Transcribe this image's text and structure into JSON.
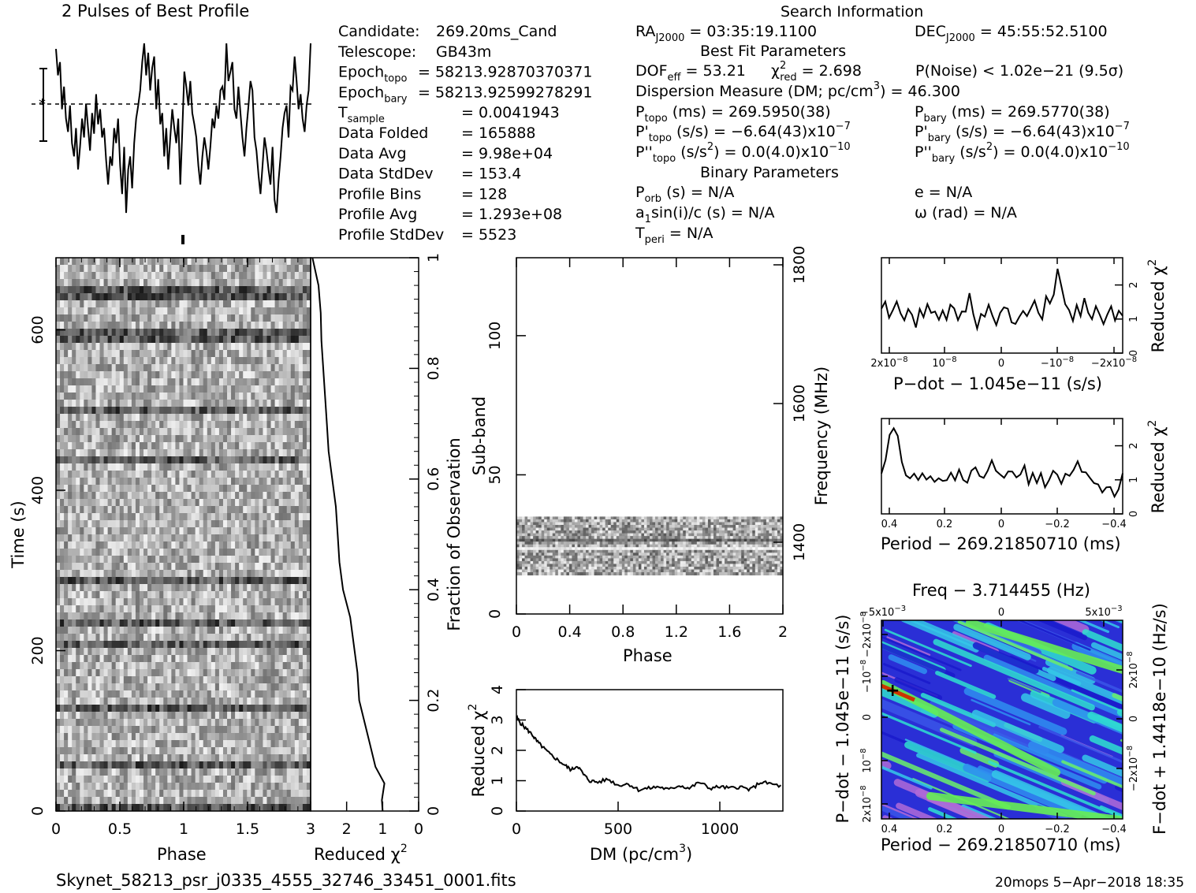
{
  "header": {
    "profile_title": "2 Pulses of Best Profile",
    "search_title": "Search Information",
    "best_fit_title": "Best Fit Parameters",
    "binary_title": "Binary Parameters"
  },
  "candidate_info": [
    {
      "label": "Candidate:",
      "value": "269.20ms_Cand"
    },
    {
      "label": "Telescope:",
      "value": "GB43m"
    },
    {
      "label": "Epoch",
      "sub": "topo",
      "value": "= 58213.92870370371"
    },
    {
      "label": "Epoch",
      "sub": "bary",
      "value": "= 58213.92599278291"
    },
    {
      "label": "T",
      "sub": "sample",
      "value": "=   0.0041943"
    },
    {
      "label": "Data Folded",
      "value": "=   165888"
    },
    {
      "label": "Data Avg",
      "value": "=   9.98e+04"
    },
    {
      "label": "Data StdDev",
      "value": "=   153.4"
    },
    {
      "label": "Profile Bins",
      "value": "=   128"
    },
    {
      "label": "Profile Avg",
      "value": "=   1.293e+08"
    },
    {
      "label": "Profile StdDev",
      "value": "=   5523"
    }
  ],
  "search_info": {
    "ra": {
      "label": "RA",
      "sub": "J2000",
      "value": " = 03:35:19.1100"
    },
    "dec": {
      "label": "DEC",
      "sub": "J2000",
      "value": " = 45:55:52.5100"
    },
    "dof": {
      "label": "DOF",
      "sub": "eff",
      "value": " = 53.21"
    },
    "chi2": {
      "label": "χ",
      "sup": "2",
      "sub": "red",
      "value": " = 2.698"
    },
    "pnoise": "P(Noise) < 1.02e−21   (9.5σ)",
    "dm": "Dispersion Measure (DM; pc/cm",
    "dm_sup": "3",
    "dm_value": ") = 46.300",
    "p_topo": {
      "label": "P",
      "sub": "topo",
      "value": " (ms) =  269.5950(38)"
    },
    "p_bary": {
      "label": "P",
      "sub": "bary",
      "value": " (ms) =  269.5770(38)"
    },
    "pd_topo": {
      "label": "P'",
      "sub": "topo",
      "value": " (s/s) = −6.64(43)x10",
      "sup": "−7"
    },
    "pd_bary": {
      "label": "P'",
      "sub": "bary",
      "value": " (s/s) = −6.64(43)x10",
      "sup": "−7"
    },
    "pdd_topo": {
      "label": "P''",
      "sub": "topo",
      "value": " (s/s",
      "sup1": "2",
      "value2": ") = 0.0(4.0)x10",
      "sup": "−10"
    },
    "pdd_bary": {
      "label": "P''",
      "sub": "bary",
      "value": " (s/s",
      "sup1": "2",
      "value2": ") = 0.0(4.0)x10",
      "sup": "−10"
    },
    "porb": {
      "label": "P",
      "sub": "orb",
      "value": " (s) = N/A"
    },
    "a1": {
      "label": "a",
      "sub": "1",
      "value": "sin(i)/c (s) = N/A"
    },
    "tperi": {
      "label": "T",
      "sub": "peri",
      "value": " = N/A"
    },
    "ecc": "e = N/A",
    "omega": "ω (rad) = N/A"
  },
  "chart_data": [
    {
      "id": "profile",
      "type": "line",
      "title": "2 Pulses of Best Profile",
      "x_range": [
        0,
        2
      ],
      "values": [
        0.92,
        0.78,
        0.85,
        0.6,
        0.72,
        0.55,
        0.48,
        0.62,
        0.42,
        0.35,
        0.5,
        0.28,
        0.4,
        0.55,
        0.45,
        0.63,
        0.5,
        0.38,
        0.58,
        0.47,
        0.68,
        0.52,
        0.6,
        0.45,
        0.5,
        0.33,
        0.2,
        0.35,
        0.3,
        0.5,
        0.42,
        0.55,
        0.3,
        0.15,
        0.4,
        0.05,
        0.28,
        0.35,
        0.18,
        0.42,
        0.55,
        0.62,
        0.7,
        0.85,
        0.95,
        0.78,
        0.9,
        0.7,
        0.82,
        0.88,
        0.6,
        0.76,
        0.52,
        0.58,
        0.35,
        0.5,
        0.28,
        0.45,
        0.6,
        0.5,
        0.42,
        0.55,
        0.2,
        0.48,
        0.8,
        0.72,
        0.62,
        0.75,
        0.58,
        0.52,
        0.45,
        0.3,
        0.2,
        0.35,
        0.45,
        0.38,
        0.28,
        0.4,
        0.55,
        0.5,
        0.62,
        0.55,
        0.7,
        0.72,
        0.65,
        0.95,
        0.75,
        0.8,
        0.85,
        0.6,
        0.55,
        0.72,
        0.58,
        0.45,
        0.35,
        0.5,
        0.62,
        0.75,
        0.7,
        0.45,
        0.38,
        0.25,
        0.15,
        0.3,
        0.45,
        0.38,
        0.28,
        0.2,
        0.4,
        0.12,
        0.05,
        0.22,
        0.35,
        0.5,
        0.58,
        0.62,
        0.45,
        0.72,
        0.7,
        0.88,
        0.75,
        0.6,
        0.68,
        0.55,
        0.48,
        0.62,
        0.7,
        0.95
      ]
    },
    {
      "id": "time_phase",
      "type": "heatmap",
      "x_axis_label": "Phase",
      "y_axis_label": "Time (s)",
      "x_ticks": [
        "0",
        "0.5",
        "1",
        "1.5"
      ],
      "y_ticks": [
        "0",
        "200",
        "400",
        "600"
      ],
      "y_range": [
        0,
        690
      ],
      "right_axis_label": "Fraction of Observation",
      "right_ticks": [
        "0",
        "0.2",
        "0.4",
        "0.6",
        "0.8",
        "1"
      ]
    },
    {
      "id": "time_chi2",
      "type": "line",
      "x_axis_label": "Reduced χ",
      "x_axis_sup": "2",
      "x_ticks": [
        "3",
        "2",
        "1",
        "0"
      ],
      "x_range": [
        3,
        0
      ],
      "points": [
        [
          1.0,
          0.0
        ],
        [
          1.02,
          0.02
        ],
        [
          0.95,
          0.05
        ],
        [
          1.2,
          0.08
        ],
        [
          1.35,
          0.12
        ],
        [
          1.5,
          0.16
        ],
        [
          1.65,
          0.2
        ],
        [
          1.7,
          0.25
        ],
        [
          1.8,
          0.3
        ],
        [
          1.9,
          0.35
        ],
        [
          2.1,
          0.4
        ],
        [
          2.2,
          0.45
        ],
        [
          2.25,
          0.5
        ],
        [
          2.3,
          0.55
        ],
        [
          2.4,
          0.6
        ],
        [
          2.5,
          0.65
        ],
        [
          2.55,
          0.7
        ],
        [
          2.6,
          0.75
        ],
        [
          2.65,
          0.8
        ],
        [
          2.7,
          0.85
        ],
        [
          2.72,
          0.9
        ],
        [
          2.78,
          0.95
        ],
        [
          2.95,
          1.0
        ]
      ]
    },
    {
      "id": "subband_phase",
      "type": "heatmap",
      "x_axis_label": "Phase",
      "y_axis_label": "Sub-band",
      "x_ticks": [
        "0",
        "0.4",
        "0.8",
        "1.2",
        "1.6",
        "2"
      ],
      "y_ticks": [
        "0",
        "50",
        "100"
      ],
      "y_range": [
        0,
        128
      ],
      "band_range": [
        14,
        35
      ],
      "right_axis_label": "Frequency (MHz)",
      "right_ticks": [
        "1400",
        "1600",
        "1800"
      ]
    },
    {
      "id": "dm_chi2",
      "type": "line",
      "x_axis_label": "DM (pc/cm",
      "x_axis_sup": "3",
      "y_axis_label": "Reduced χ",
      "y_axis_sup": "2",
      "x_ticks": [
        "0",
        "500",
        "1000"
      ],
      "y_ticks": [
        "0",
        "1",
        "2",
        "3",
        "4"
      ],
      "x_range": [
        0,
        1310
      ],
      "y_range": [
        0,
        4
      ],
      "points": [
        [
          0,
          3.1
        ],
        [
          20,
          2.9
        ],
        [
          50,
          2.7
        ],
        [
          80,
          2.5
        ],
        [
          100,
          2.3
        ],
        [
          130,
          2.1
        ],
        [
          160,
          1.9
        ],
        [
          200,
          1.7
        ],
        [
          240,
          1.5
        ],
        [
          270,
          1.35
        ],
        [
          300,
          1.5
        ],
        [
          330,
          1.2
        ],
        [
          360,
          1.0
        ],
        [
          400,
          0.95
        ],
        [
          450,
          1.05
        ],
        [
          500,
          0.85
        ],
        [
          550,
          0.9
        ],
        [
          600,
          0.7
        ],
        [
          650,
          0.75
        ],
        [
          700,
          0.8
        ],
        [
          750,
          0.7
        ],
        [
          800,
          0.85
        ],
        [
          850,
          0.75
        ],
        [
          900,
          0.95
        ],
        [
          950,
          0.75
        ],
        [
          1000,
          0.8
        ],
        [
          1050,
          0.75
        ],
        [
          1100,
          0.8
        ],
        [
          1150,
          0.7
        ],
        [
          1200,
          0.95
        ],
        [
          1250,
          0.9
        ],
        [
          1310,
          0.8
        ]
      ]
    },
    {
      "id": "pdot_chi2",
      "type": "line",
      "x_axis_label": "P−dot − 1.045e−11 (s/s)",
      "y_axis_label": "Reduced χ",
      "y_axis_sup": "2",
      "x_ticks": [
        "2x10",
        "10",
        "0",
        "−10",
        "−2x10"
      ],
      "x_tick_sup": "−8",
      "y_ticks": [
        "0",
        "1",
        "2"
      ],
      "x_range": [
        2.5e-08,
        -2.5e-08
      ],
      "y_range": [
        0,
        2.8
      ],
      "values": [
        1.2,
        1.5,
        1.0,
        1.3,
        1.6,
        1.2,
        1.0,
        1.3,
        1.1,
        0.8,
        1.2,
        1.0,
        1.4,
        1.1,
        1.3,
        0.9,
        1.2,
        1.0,
        1.5,
        1.2,
        0.9,
        1.3,
        1.1,
        1.7,
        1.2,
        0.8,
        1.1,
        1.0,
        1.3,
        1.2,
        0.9,
        1.1,
        1.4,
        1.2,
        1.0,
        0.8,
        1.1,
        1.3,
        1.0,
        1.2,
        1.5,
        1.3,
        1.1,
        1.6,
        1.4,
        1.8,
        2.6,
        2.0,
        1.4,
        1.2,
        1.0,
        1.3,
        1.1,
        1.5,
        1.2,
        1.0,
        1.3,
        1.1,
        0.9,
        1.2,
        1.3,
        1.0,
        1.2,
        1.1
      ]
    },
    {
      "id": "period_chi2",
      "type": "line",
      "x_axis_label": "Period − 269.21850710 (ms)",
      "y_axis_label": "Reduced χ",
      "y_axis_sup": "2",
      "x_ticks": [
        "0.4",
        "0.2",
        "0",
        "−0.2",
        "−0.4"
      ],
      "y_ticks": [
        "0",
        "1",
        "2"
      ],
      "x_range": [
        0.42,
        -0.42
      ],
      "y_range": [
        0,
        2.8
      ],
      "values": [
        1.2,
        1.6,
        2.2,
        2.6,
        2.3,
        1.6,
        1.2,
        1.0,
        1.3,
        1.1,
        1.2,
        0.9,
        1.2,
        1.0,
        1.1,
        0.9,
        1.0,
        1.2,
        1.0,
        1.3,
        1.1,
        0.9,
        1.2,
        1.4,
        1.1,
        1.0,
        1.2,
        1.5,
        1.2,
        1.1,
        1.0,
        1.3,
        1.2,
        1.0,
        1.1,
        1.3,
        0.9,
        1.2,
        1.0,
        1.1,
        0.9,
        1.0,
        1.2,
        1.1,
        0.9,
        1.2,
        1.0,
        1.3,
        1.6,
        1.3,
        1.1,
        1.0,
        0.8,
        0.9,
        0.7,
        0.8,
        0.9,
        0.6,
        0.8,
        1.2
      ]
    },
    {
      "id": "ppdot_grid",
      "type": "heatmap",
      "title": "Freq − 3.714455 (Hz)",
      "x_axis_label": "Period − 269.21850710 (ms)",
      "y_axis_label": "P−dot − 1.045e−11 (s/s)",
      "right_axis_label": "F−dot + 1.4418e−10 (Hz/s)",
      "x_ticks": [
        "0.4",
        "0.2",
        "0",
        "−0.2",
        "−0.4"
      ],
      "top_ticks": [
        "−5x10",
        "0",
        "5x10"
      ],
      "top_tick_sup": "−3",
      "left_ticks": [
        "2x10",
        "10",
        "0",
        "−10",
        "−2x10"
      ],
      "left_tick_sup": "−8",
      "right_ticks": [
        "2x10",
        "0",
        "−2x10"
      ],
      "right_tick_sup": "−8"
    }
  ],
  "footer": {
    "filename": "Skynet_58213_psr_j0335_4555_32746_33451_0001.fits",
    "stamp": "20mops  5−Apr−2018 18:35"
  }
}
